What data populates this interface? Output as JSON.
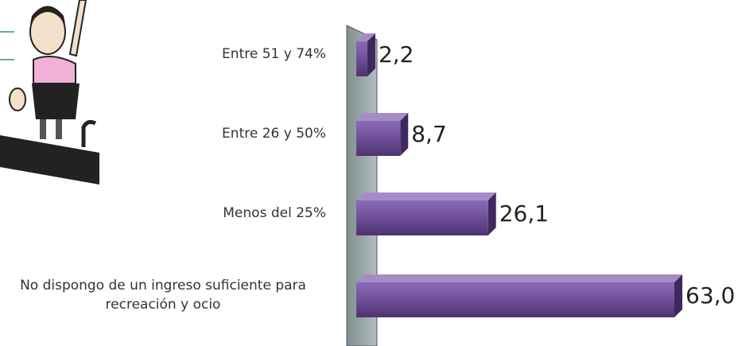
{
  "chart_data": {
    "type": "bar",
    "orientation": "horizontal",
    "categories": [
      "Entre 51 y 74%",
      "Entre 26 y  50%",
      "Menos del 25%",
      "No dispongo de un ingreso suficiente para recreación y ocio"
    ],
    "values": [
      2.2,
      8.7,
      26.1,
      63.0
    ],
    "value_labels": [
      "2,2",
      "8,7",
      "26,1",
      "63,0"
    ],
    "color": "#6f4f99"
  }
}
